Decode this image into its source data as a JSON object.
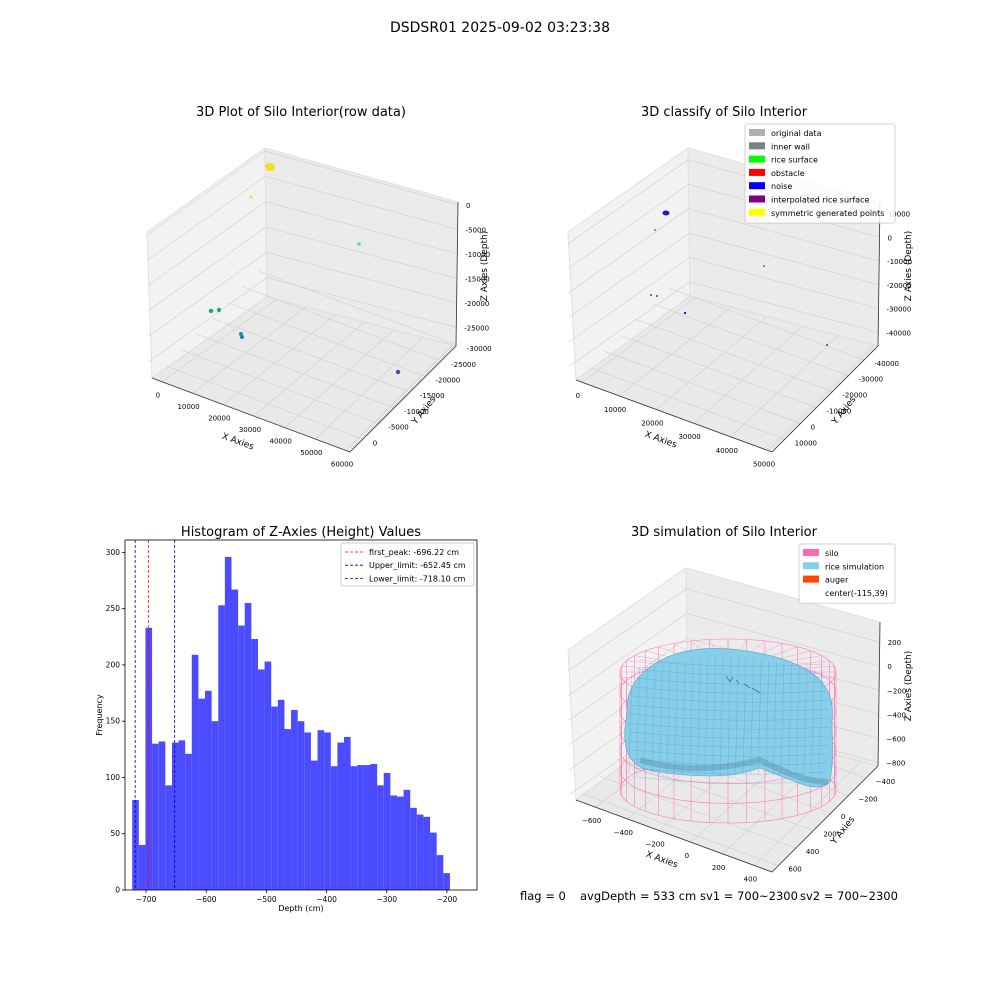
{
  "figure": {
    "suptitle": "DSDSR01 2025-09-02 03:23:38",
    "status": {
      "flag": "flag = 0",
      "avg_depth": "avgDepth = 533 cm",
      "sv1": "sv1 = 700~2300",
      "sv2": "sv2 = 700~2300"
    }
  },
  "chart_data": [
    {
      "type": "scatter",
      "projection": "3d",
      "title": "3D Plot of Silo Interior(row data)",
      "xlabel": "X Axies",
      "ylabel": "Y Axies",
      "zlabel": "Z Axies (Depth)",
      "xticks": [
        "0",
        "10000",
        "20000",
        "30000",
        "40000",
        "50000",
        "60000"
      ],
      "yticks": [
        "0",
        "-5000",
        "-10000",
        "-15000",
        "-20000",
        "-25000",
        "-30000"
      ],
      "zticks": [
        "0",
        "-5000",
        "-10000",
        "-15000",
        "-20000",
        "-25000"
      ],
      "grid": true,
      "colors": {
        "yellow": "#f2e01a",
        "teal": "#1f9e8a",
        "light_green": "#6fd0a0",
        "purple": "#6a3d9a"
      }
    },
    {
      "type": "scatter",
      "projection": "3d",
      "title": "3D classify of Silo Interior",
      "xlabel": "X Axies",
      "ylabel": "Y Axies",
      "zlabel": "Z Axies (Depth)",
      "xticks": [
        "0",
        "10000",
        "20000",
        "30000",
        "40000",
        "50000"
      ],
      "yticks": [
        "10000",
        "0",
        "-10000",
        "-20000",
        "-30000",
        "-40000"
      ],
      "zticks": [
        "10000",
        "0",
        "-10000",
        "-20000",
        "-30000",
        "-40000"
      ],
      "grid": true,
      "legend_position": "top-right",
      "legend": [
        {
          "label": "original data",
          "color": "#b0b0b0"
        },
        {
          "label": "inner wall",
          "color": "#808080"
        },
        {
          "label": "rice surface",
          "color": "#00ff00"
        },
        {
          "label": "obstacle",
          "color": "#ff0000"
        },
        {
          "label": "noise",
          "color": "#0000ff"
        },
        {
          "label": "interpolated rice surface",
          "color": "#800080"
        },
        {
          "label": "symmetric generated points",
          "color": "#ffff00"
        }
      ]
    },
    {
      "type": "bar",
      "title": "Histogram of Z-Axies (Height) Values",
      "xlabel": "Depth (cm)",
      "ylabel": "Frequency",
      "bar_color": "#4b4bff",
      "xlim": [
        -735,
        -150
      ],
      "ylim": [
        0,
        311
      ],
      "xticks": [
        -700,
        -600,
        -500,
        -400,
        -300,
        -200
      ],
      "xtick_labels": [
        "−700",
        "−600",
        "−500",
        "−400",
        "−300",
        "−200"
      ],
      "yticks": [
        0,
        50,
        100,
        150,
        200,
        250,
        300
      ],
      "bin_start": -723.0,
      "bin_width": 11.0,
      "values": [
        80,
        40,
        233,
        130,
        132,
        93,
        131,
        133,
        121,
        209,
        170,
        177,
        150,
        253,
        296,
        267,
        235,
        255,
        223,
        196,
        203,
        163,
        169,
        143,
        160,
        150,
        140,
        115,
        142,
        140,
        110,
        131,
        136,
        110,
        111,
        111,
        112,
        93,
        104,
        84,
        83,
        89,
        73,
        67,
        65,
        51,
        31,
        15
      ],
      "vlines": [
        {
          "label": "first_peak: -696.22 cm",
          "x": -696.22,
          "color": "#ff0000"
        },
        {
          "label": "Upper_limit: -652.45 cm",
          "x": -652.45,
          "color": "#0000aa"
        },
        {
          "label": "Lower_limit: -718.10 cm",
          "x": -718.1,
          "color": "#0000aa"
        }
      ],
      "legend_position": "top-right"
    },
    {
      "type": "surface",
      "projection": "3d",
      "title": "3D simulation of Silo Interior",
      "xlabel": "X Axies",
      "ylabel": "Y Axies",
      "zlabel": "Z Axies (Depth)",
      "xticks": [
        "−600",
        "−400",
        "−200",
        "0",
        "200",
        "400"
      ],
      "yticks": [
        "600",
        "400",
        "200",
        "0",
        "−200",
        "−400"
      ],
      "zticks": [
        "200",
        "0",
        "−200",
        "−400",
        "−600",
        "−800"
      ],
      "grid": true,
      "legend_position": "top-right",
      "legend": [
        {
          "label": "silo",
          "color": "#ff69b4"
        },
        {
          "label": "rice simulation",
          "color": "#87ceeb"
        },
        {
          "label": "auger",
          "color": "#ff4500"
        },
        {
          "label": "center(-115,39)",
          "color": ""
        }
      ]
    }
  ]
}
